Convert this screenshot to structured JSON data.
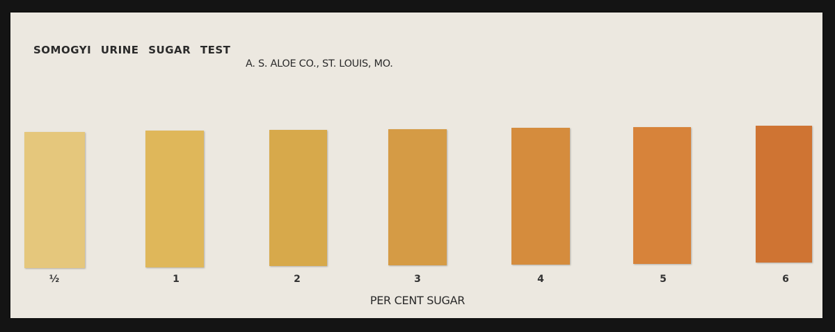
{
  "card": {
    "title": "SOMOGYI URINE SUGAR TEST",
    "maker": "A. S. ALOE CO., ST. LOUIS, MO.",
    "axis_label": "PER CENT SUGAR",
    "swatches": [
      {
        "label": "½",
        "color": "#e5c77c"
      },
      {
        "label": "1",
        "color": "#dfb75a"
      },
      {
        "label": "2",
        "color": "#d7a94b"
      },
      {
        "label": "3",
        "color": "#d59b45"
      },
      {
        "label": "4",
        "color": "#d58c3d"
      },
      {
        "label": "5",
        "color": "#d7833a"
      },
      {
        "label": "6",
        "color": "#cf7433"
      }
    ]
  }
}
